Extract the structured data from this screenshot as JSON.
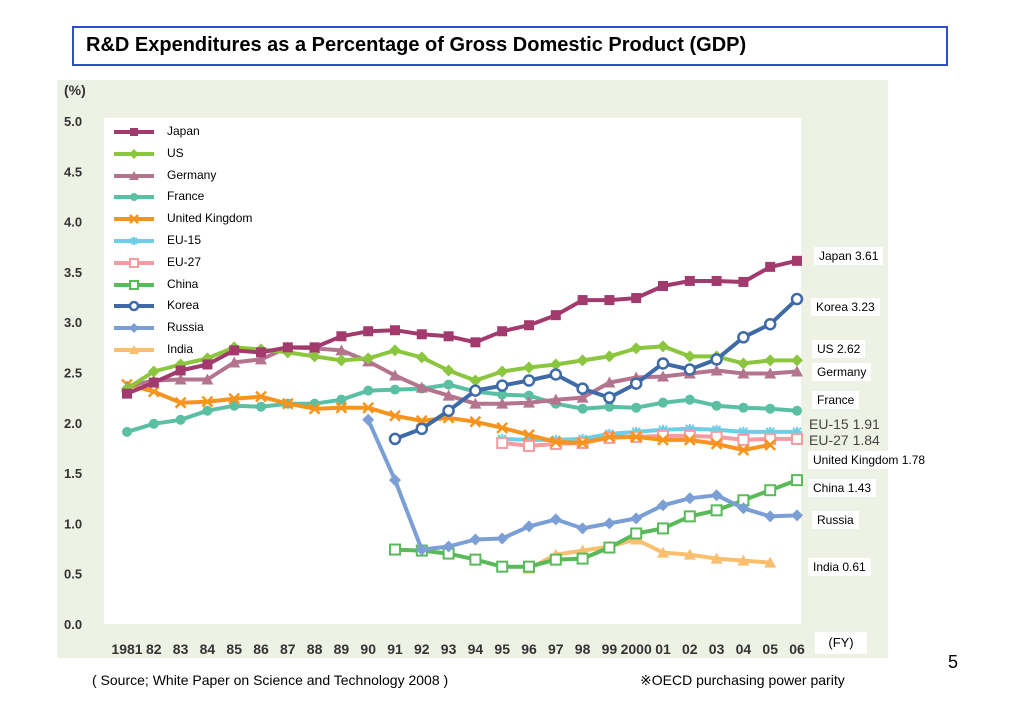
{
  "page": {
    "title": "R&D Expenditures as a Percentage of Gross Domestic Product (GDP)",
    "unit_label": "(%)",
    "fy_label": "(FY)",
    "source": "( Source; White Paper on Science and Technology 2008 )",
    "note": "※OECD purchasing power parity",
    "page_number": "5"
  },
  "end_labels": {
    "japan": "Japan 3.61",
    "korea": "Korea 3.23",
    "us": "US 2.62",
    "germany": "Germany",
    "france": "France",
    "eu15": "EU-15 1.91",
    "eu27": "EU-27 1.84",
    "uk": "United Kingdom 1.78",
    "china": "China 1.43",
    "russia": "Russia",
    "india": "India 0.61"
  },
  "chart_data": {
    "type": "line",
    "x_tick_labels": [
      "1981",
      "82",
      "83",
      "84",
      "85",
      "86",
      "87",
      "88",
      "89",
      "90",
      "91",
      "92",
      "93",
      "94",
      "95",
      "96",
      "97",
      "98",
      "99",
      "2000",
      "01",
      "02",
      "03",
      "04",
      "05",
      "06"
    ],
    "x": [
      1981,
      1982,
      1983,
      1984,
      1985,
      1986,
      1987,
      1988,
      1989,
      1990,
      1991,
      1992,
      1993,
      1994,
      1995,
      1996,
      1997,
      1998,
      1999,
      2000,
      2001,
      2002,
      2003,
      2004,
      2005,
      2006
    ],
    "y_ticks": [
      "0.0",
      "0.5",
      "1.0",
      "1.5",
      "2.0",
      "2.5",
      "3.0",
      "3.5",
      "4.0",
      "4.5",
      "5.0"
    ],
    "ylim": [
      0,
      5.0
    ],
    "ylabel": "(%)",
    "xlabel": "(FY)",
    "legend_position": "top-left",
    "series": [
      {
        "name": "Japan",
        "color": "#a33a6e",
        "marker": "square",
        "x": [
          1981,
          1982,
          1983,
          1984,
          1985,
          1986,
          1987,
          1988,
          1989,
          1990,
          1991,
          1992,
          1993,
          1994,
          1995,
          1996,
          1997,
          1998,
          1999,
          2000,
          2001,
          2002,
          2003,
          2004,
          2005,
          2006
        ],
        "values": [
          2.29,
          2.4,
          2.52,
          2.58,
          2.72,
          2.7,
          2.75,
          2.75,
          2.86,
          2.91,
          2.92,
          2.88,
          2.86,
          2.8,
          2.91,
          2.97,
          3.07,
          3.22,
          3.22,
          3.24,
          3.36,
          3.41,
          3.41,
          3.4,
          3.55,
          3.61
        ]
      },
      {
        "name": "US",
        "color": "#8cc63f",
        "marker": "diamond",
        "x": [
          1981,
          1982,
          1983,
          1984,
          1985,
          1986,
          1987,
          1988,
          1989,
          1990,
          1991,
          1992,
          1993,
          1994,
          1995,
          1996,
          1997,
          1998,
          1999,
          2000,
          2001,
          2002,
          2003,
          2004,
          2005,
          2006
        ],
        "values": [
          2.34,
          2.51,
          2.58,
          2.64,
          2.75,
          2.73,
          2.7,
          2.66,
          2.62,
          2.64,
          2.72,
          2.65,
          2.52,
          2.42,
          2.51,
          2.55,
          2.58,
          2.62,
          2.66,
          2.74,
          2.76,
          2.66,
          2.66,
          2.59,
          2.62,
          2.62
        ]
      },
      {
        "name": "Germany",
        "color": "#b5748e",
        "marker": "triangle",
        "x": [
          1981,
          1982,
          1983,
          1984,
          1985,
          1986,
          1987,
          1988,
          1989,
          1990,
          1991,
          1992,
          1993,
          1994,
          1995,
          1996,
          1997,
          1998,
          1999,
          2000,
          2001,
          2002,
          2003,
          2004,
          2005,
          2006
        ],
        "values": [
          2.36,
          2.42,
          2.43,
          2.43,
          2.6,
          2.63,
          2.75,
          2.74,
          2.72,
          2.61,
          2.47,
          2.35,
          2.27,
          2.19,
          2.19,
          2.2,
          2.23,
          2.25,
          2.4,
          2.45,
          2.46,
          2.49,
          2.52,
          2.49,
          2.49,
          2.51
        ]
      },
      {
        "name": "France",
        "color": "#5bbfa4",
        "marker": "circle",
        "x": [
          1981,
          1982,
          1983,
          1984,
          1985,
          1986,
          1987,
          1988,
          1989,
          1990,
          1991,
          1992,
          1993,
          1994,
          1995,
          1996,
          1997,
          1998,
          1999,
          2000,
          2001,
          2002,
          2003,
          2004,
          2005,
          2006
        ],
        "values": [
          1.91,
          1.99,
          2.03,
          2.12,
          2.17,
          2.16,
          2.19,
          2.19,
          2.23,
          2.32,
          2.33,
          2.34,
          2.38,
          2.31,
          2.28,
          2.27,
          2.19,
          2.14,
          2.16,
          2.15,
          2.2,
          2.23,
          2.17,
          2.15,
          2.14,
          2.12
        ]
      },
      {
        "name": "United Kingdom",
        "color": "#f7941d",
        "marker": "x",
        "x": [
          1981,
          1982,
          1983,
          1984,
          1985,
          1986,
          1987,
          1988,
          1989,
          1990,
          1991,
          1992,
          1993,
          1994,
          1995,
          1996,
          1997,
          1998,
          1999,
          2000,
          2001,
          2002,
          2003,
          2004,
          2005
        ],
        "values": [
          2.38,
          2.31,
          2.2,
          2.21,
          2.24,
          2.26,
          2.19,
          2.14,
          2.15,
          2.15,
          2.07,
          2.02,
          2.05,
          2.01,
          1.95,
          1.88,
          1.81,
          1.8,
          1.86,
          1.86,
          1.83,
          1.83,
          1.79,
          1.73,
          1.78
        ]
      },
      {
        "name": "EU-15",
        "color": "#6ccfe6",
        "marker": "asterisk",
        "x": [
          1995,
          1996,
          1997,
          1998,
          1999,
          2000,
          2001,
          2002,
          2003,
          2004,
          2005,
          2006
        ],
        "values": [
          1.84,
          1.83,
          1.83,
          1.84,
          1.89,
          1.91,
          1.93,
          1.94,
          1.93,
          1.91,
          1.91,
          1.91
        ]
      },
      {
        "name": "EU-27",
        "color": "#f49ca0",
        "marker": "open-square",
        "x": [
          1995,
          1996,
          1997,
          1998,
          1999,
          2000,
          2001,
          2002,
          2003,
          2004,
          2005,
          2006
        ],
        "values": [
          1.8,
          1.77,
          1.79,
          1.8,
          1.85,
          1.86,
          1.87,
          1.87,
          1.86,
          1.83,
          1.84,
          1.84
        ]
      },
      {
        "name": "China",
        "color": "#5aba5a",
        "marker": "open-square",
        "x": [
          1991,
          1992,
          1993,
          1994,
          1995,
          1996,
          1997,
          1998,
          1999,
          2000,
          2001,
          2002,
          2003,
          2004,
          2005,
          2006
        ],
        "values": [
          0.74,
          0.73,
          0.7,
          0.64,
          0.57,
          0.57,
          0.64,
          0.65,
          0.76,
          0.9,
          0.95,
          1.07,
          1.13,
          1.23,
          1.33,
          1.43
        ]
      },
      {
        "name": "Korea",
        "color": "#3e6aa8",
        "marker": "open-circle",
        "x": [
          1991,
          1992,
          1993,
          1994,
          1995,
          1996,
          1997,
          1998,
          1999,
          2000,
          2001,
          2002,
          2003,
          2004,
          2005,
          2006
        ],
        "values": [
          1.84,
          1.94,
          2.12,
          2.32,
          2.37,
          2.42,
          2.48,
          2.34,
          2.25,
          2.39,
          2.59,
          2.53,
          2.63,
          2.85,
          2.98,
          3.23
        ]
      },
      {
        "name": "Russia",
        "color": "#7b9fd4",
        "marker": "diamond",
        "x": [
          1990,
          1991,
          1992,
          1993,
          1994,
          1995,
          1996,
          1997,
          1998,
          1999,
          2000,
          2001,
          2002,
          2003,
          2004,
          2005,
          2006
        ],
        "values": [
          2.03,
          1.43,
          0.74,
          0.77,
          0.84,
          0.85,
          0.97,
          1.04,
          0.95,
          1.0,
          1.05,
          1.18,
          1.25,
          1.28,
          1.15,
          1.07,
          1.08
        ]
      },
      {
        "name": "India",
        "color": "#f9bf6e",
        "marker": "triangle",
        "x": [
          1996,
          1997,
          1998,
          1999,
          2000,
          2001,
          2002,
          2003,
          2004,
          2005
        ],
        "values": [
          0.55,
          0.69,
          0.73,
          0.77,
          0.84,
          0.71,
          0.69,
          0.65,
          0.63,
          0.61
        ]
      }
    ]
  }
}
